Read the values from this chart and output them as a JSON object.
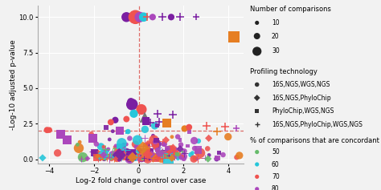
{
  "title": "",
  "xlabel": "Log-2 fold change control over case",
  "ylabel": "-Log-10 adjusted p-value",
  "xlim": [
    -4.5,
    4.7
  ],
  "ylim": [
    -0.3,
    10.8
  ],
  "xticks": [
    -4,
    -2,
    0,
    2,
    4
  ],
  "yticks": [
    0.0,
    2.5,
    5.0,
    7.5,
    10.0
  ],
  "hline_y": 2.0,
  "vline_x": 0.0,
  "background_color": "#f2f2f2",
  "grid_color": "#ffffff",
  "dashed_line_color": "#d9534f",
  "concordant_colors": {
    "50": "#66bb6a",
    "60": "#26c6da",
    "70": "#ef5350",
    "80": "#ab47bc",
    "90": "#7b1fa2",
    "100": "#e67e22"
  },
  "legend_sizes": [
    10,
    20,
    30
  ],
  "legend_size_pts": [
    25,
    60,
    120
  ],
  "scatter_seed": 42,
  "n_bg": 280
}
